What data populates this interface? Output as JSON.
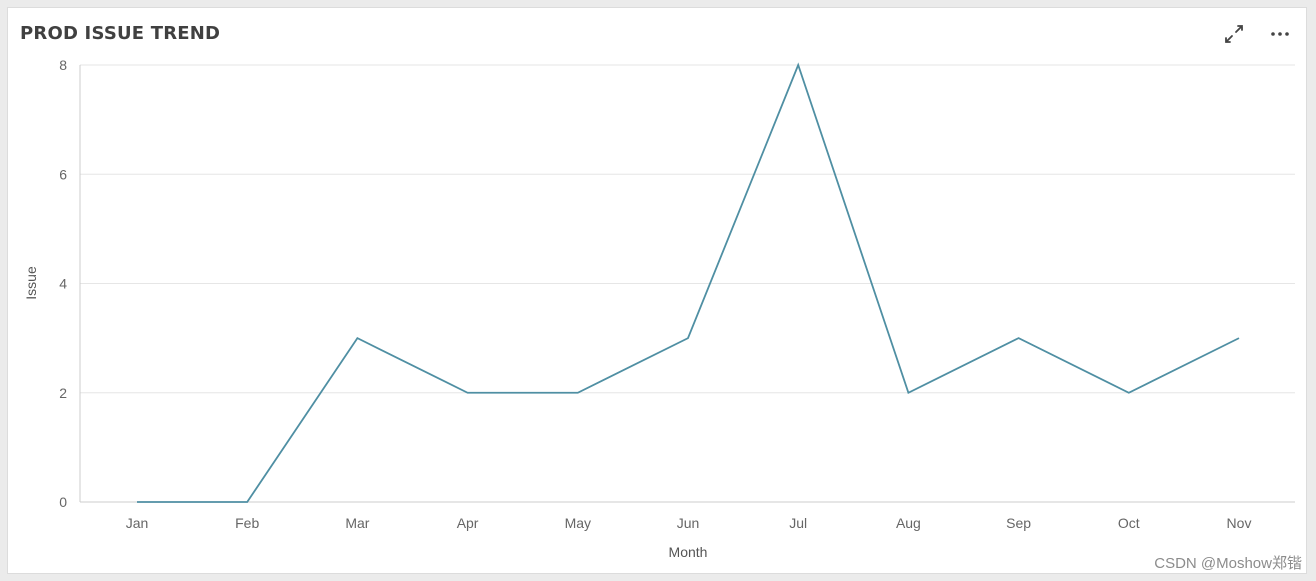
{
  "panel": {
    "title": "PROD ISSUE TREND",
    "expand_icon": "expand-arrows-icon",
    "more_icon": "more-horizontal-icon"
  },
  "watermark": "CSDN @Moshow郑锴",
  "colors": {
    "line": "#4f8fa3",
    "grid": "#e6e6e6",
    "axis": "#cccccc",
    "text": "#666666"
  },
  "chart_data": {
    "type": "line",
    "xlabel": "Month",
    "ylabel": "Issue",
    "categories": [
      "Jan",
      "Feb",
      "Mar",
      "Apr",
      "May",
      "Jun",
      "Jul",
      "Aug",
      "Sep",
      "Oct",
      "Nov"
    ],
    "series": [
      {
        "values": [
          0,
          0,
          3,
          2,
          2,
          3,
          8,
          2,
          3,
          2,
          3
        ]
      }
    ],
    "yticks": [
      0,
      2,
      4,
      6,
      8
    ],
    "ylim": [
      0,
      8
    ],
    "grid": true,
    "legend": "none"
  }
}
